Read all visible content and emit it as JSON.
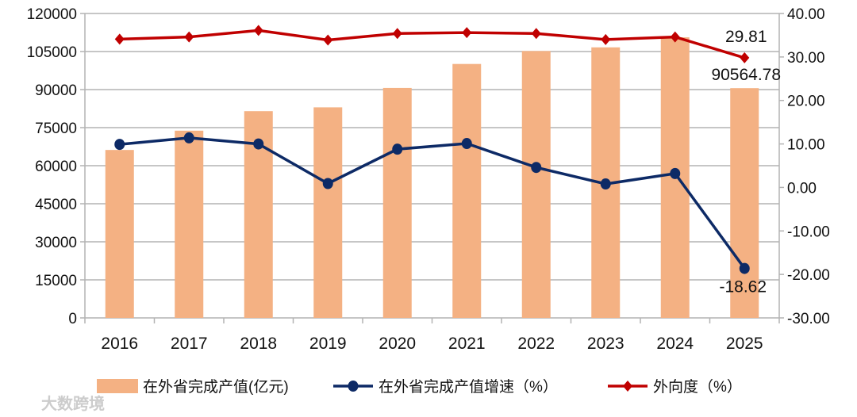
{
  "chart_data": {
    "type": "bar+line",
    "categories": [
      "2016",
      "2017",
      "2018",
      "2019",
      "2020",
      "2021",
      "2022",
      "2023",
      "2024",
      "2025"
    ],
    "left_axis": {
      "ylim": [
        0,
        120000
      ],
      "ticks": [
        "0",
        "15000",
        "30000",
        "45000",
        "60000",
        "75000",
        "90000",
        "105000",
        "120000"
      ]
    },
    "right_axis": {
      "ylim": [
        -30,
        40
      ],
      "ticks": [
        "-30.00",
        "-20.00",
        "-10.00",
        "0.00",
        "10.00",
        "20.00",
        "30.00",
        "40.00"
      ]
    },
    "grid": true,
    "legend_position": "bottom",
    "series": [
      {
        "name": "在外省完成产值(亿元)",
        "type": "bar",
        "axis": "left",
        "color": "#f4b183",
        "values": [
          66200,
          73800,
          81500,
          83000,
          90650,
          100100,
          105200,
          106650,
          110600,
          90564.78
        ]
      },
      {
        "name": "在外省完成产值增速（%）",
        "type": "line",
        "axis": "right",
        "color": "#0d2a66",
        "marker": "circle",
        "values": [
          9.9,
          11.4,
          10.0,
          0.9,
          8.8,
          10.1,
          4.6,
          0.8,
          3.2,
          -18.62
        ]
      },
      {
        "name": "外向度（%）",
        "type": "line",
        "axis": "right",
        "color": "#c00000",
        "marker": "diamond",
        "values": [
          34.1,
          34.6,
          36.1,
          33.9,
          35.4,
          35.6,
          35.4,
          34.0,
          34.6,
          29.81
        ]
      }
    ],
    "data_labels": {
      "bar_2025": "90564.78",
      "growth_2025": "-18.62",
      "outward_2025": "29.81"
    }
  },
  "watermark": "大数跨境"
}
